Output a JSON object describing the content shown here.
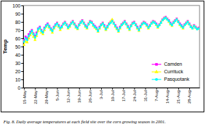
{
  "chart_data": {
    "type": "line",
    "title": "Fig. 8.  Daily average temperatures at each field site over the corn growing season in 2001.",
    "y_label": "Temp",
    "categories": [
      "15-May",
      null,
      null,
      null,
      null,
      null,
      null,
      "22-May",
      null,
      null,
      null,
      null,
      null,
      null,
      "29-May",
      null,
      null,
      null,
      null,
      null,
      null,
      "5-Jun",
      null,
      null,
      null,
      null,
      null,
      null,
      "12-Jun",
      null,
      null,
      null,
      null,
      null,
      null,
      "19-Jun",
      null,
      null,
      null,
      null,
      null,
      null,
      "26-Jun",
      null,
      null,
      null,
      null,
      null,
      null,
      "3-Jul",
      null,
      null,
      null,
      null,
      null,
      null,
      "10-Jul",
      null,
      null,
      null,
      null,
      null,
      null,
      "17-Jul",
      null,
      null,
      null,
      null,
      null,
      null,
      "24-Jul",
      null,
      null,
      null,
      null,
      null,
      null,
      "31-Jul",
      null,
      null,
      null,
      null,
      null,
      null,
      "7-Aug",
      null,
      null,
      null,
      null,
      null,
      null,
      "14-Aug",
      null,
      null,
      null,
      null,
      null,
      null,
      "21-Aug",
      null,
      null,
      null,
      null,
      null,
      null,
      "28-Aug",
      null,
      null,
      null,
      null,
      null,
      null
    ],
    "series": [
      {
        "name": "Camden",
        "color": "#ff00ff",
        "marker": "square",
        "values": [
          58,
          62,
          60,
          65,
          68,
          70,
          66,
          63,
          67,
          72,
          74,
          70,
          68,
          73,
          76,
          78,
          75,
          72,
          70,
          74,
          77,
          79,
          76,
          73,
          75,
          78,
          80,
          77,
          74,
          76,
          79,
          81,
          78,
          75,
          73,
          77,
          80,
          82,
          79,
          76,
          74,
          78,
          81,
          80,
          77,
          75,
          73,
          70,
          74,
          77,
          79,
          76,
          72,
          75,
          78,
          80,
          82,
          79,
          76,
          73,
          70,
          74,
          77,
          79,
          81,
          78,
          75,
          72,
          76,
          79,
          80,
          77,
          74,
          71,
          75,
          78,
          80,
          79,
          77,
          74,
          76,
          79,
          81,
          80,
          78,
          75,
          77,
          80,
          83,
          85,
          86,
          84,
          82,
          79,
          77,
          80,
          82,
          84,
          81,
          78,
          76,
          74,
          77,
          79,
          81,
          78,
          75,
          73,
          76,
          74,
          72,
          73
        ]
      },
      {
        "name": "Currituck",
        "color": "#ffff00",
        "marker": "triangle",
        "values": [
          52,
          56,
          55,
          60,
          64,
          67,
          62,
          58,
          63,
          69,
          72,
          67,
          65,
          70,
          74,
          76,
          73,
          70,
          67,
          72,
          75,
          78,
          74,
          70,
          73,
          77,
          79,
          76,
          72,
          74,
          78,
          80,
          77,
          73,
          71,
          76,
          79,
          81,
          78,
          74,
          72,
          77,
          80,
          79,
          75,
          73,
          71,
          68,
          72,
          76,
          78,
          74,
          70,
          73,
          77,
          80,
          83,
          78,
          74,
          71,
          68,
          72,
          76,
          78,
          80,
          77,
          73,
          70,
          75,
          78,
          79,
          76,
          72,
          69,
          73,
          77,
          79,
          78,
          75,
          72,
          75,
          78,
          80,
          79,
          76,
          73,
          76,
          79,
          82,
          84,
          85,
          83,
          80,
          77,
          75,
          79,
          81,
          83,
          80,
          76,
          74,
          72,
          76,
          78,
          80,
          77,
          74,
          72,
          75,
          73,
          71,
          72
        ]
      },
      {
        "name": "Pasquotank",
        "color": "#00ffff",
        "marker": "circle",
        "values": [
          56,
          60,
          58,
          63,
          66,
          69,
          65,
          61,
          65,
          71,
          73,
          69,
          67,
          72,
          75,
          77,
          74,
          71,
          69,
          73,
          76,
          78,
          75,
          72,
          74,
          77,
          79,
          76,
          73,
          75,
          78,
          80,
          77,
          74,
          72,
          76,
          79,
          81,
          78,
          75,
          73,
          77,
          80,
          79,
          76,
          74,
          72,
          69,
          73,
          76,
          78,
          75,
          71,
          74,
          77,
          79,
          81,
          78,
          75,
          72,
          69,
          73,
          76,
          78,
          80,
          77,
          74,
          71,
          75,
          78,
          79,
          76,
          73,
          70,
          74,
          77,
          79,
          78,
          76,
          73,
          75,
          78,
          80,
          79,
          77,
          74,
          76,
          79,
          82,
          84,
          85,
          83,
          81,
          78,
          76,
          79,
          81,
          83,
          80,
          77,
          75,
          73,
          76,
          78,
          80,
          77,
          74,
          72,
          75,
          73,
          71,
          72
        ]
      }
    ],
    "ylim": [
      0,
      100
    ],
    "yticks": [
      0,
      10,
      20,
      30,
      40,
      50,
      60,
      70,
      80,
      90,
      100
    ],
    "grid": false,
    "legend": "lower right"
  }
}
